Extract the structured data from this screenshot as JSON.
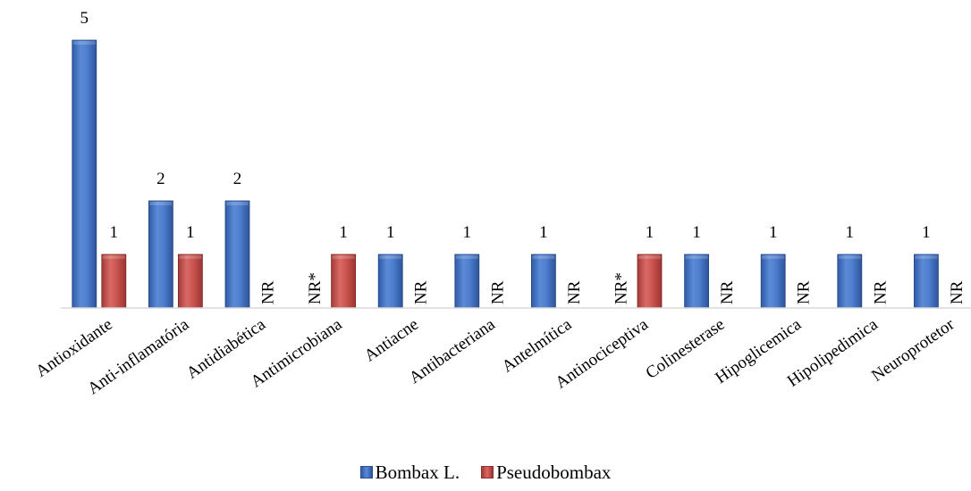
{
  "chart_data": {
    "type": "bar",
    "title": "",
    "xlabel": "",
    "ylabel": "",
    "ylim": [
      0,
      5
    ],
    "grid": false,
    "legend_position": "bottom",
    "categories": [
      "Antioxidante",
      "Anti-inflamatória",
      "Antidiabética",
      "Antimicrobiana",
      "Antiacne",
      "Antibacteriana",
      "Antelmítica",
      "Antinociceptiva",
      "Colinesterase",
      "Hipoglicemica",
      "Hipolipedimica",
      "Neuroprotetor"
    ],
    "series": [
      {
        "name": "Bombax L.",
        "color": "#4472C4",
        "values": [
          5,
          2,
          2,
          null,
          1,
          1,
          1,
          null,
          1,
          1,
          1,
          1
        ],
        "labels": [
          "5",
          "2",
          "2",
          "NR*",
          "1",
          "1",
          "1",
          "NR*",
          "1",
          "1",
          "1",
          "1"
        ]
      },
      {
        "name": "Pseudobombax",
        "color": "#C0504D",
        "values": [
          1,
          1,
          null,
          1,
          null,
          null,
          null,
          1,
          null,
          null,
          null,
          null
        ],
        "labels": [
          "1",
          "1",
          "NR",
          "1",
          "NR",
          "NR",
          "NR",
          "1",
          "NR",
          "NR",
          "NR",
          "NR"
        ]
      }
    ]
  }
}
